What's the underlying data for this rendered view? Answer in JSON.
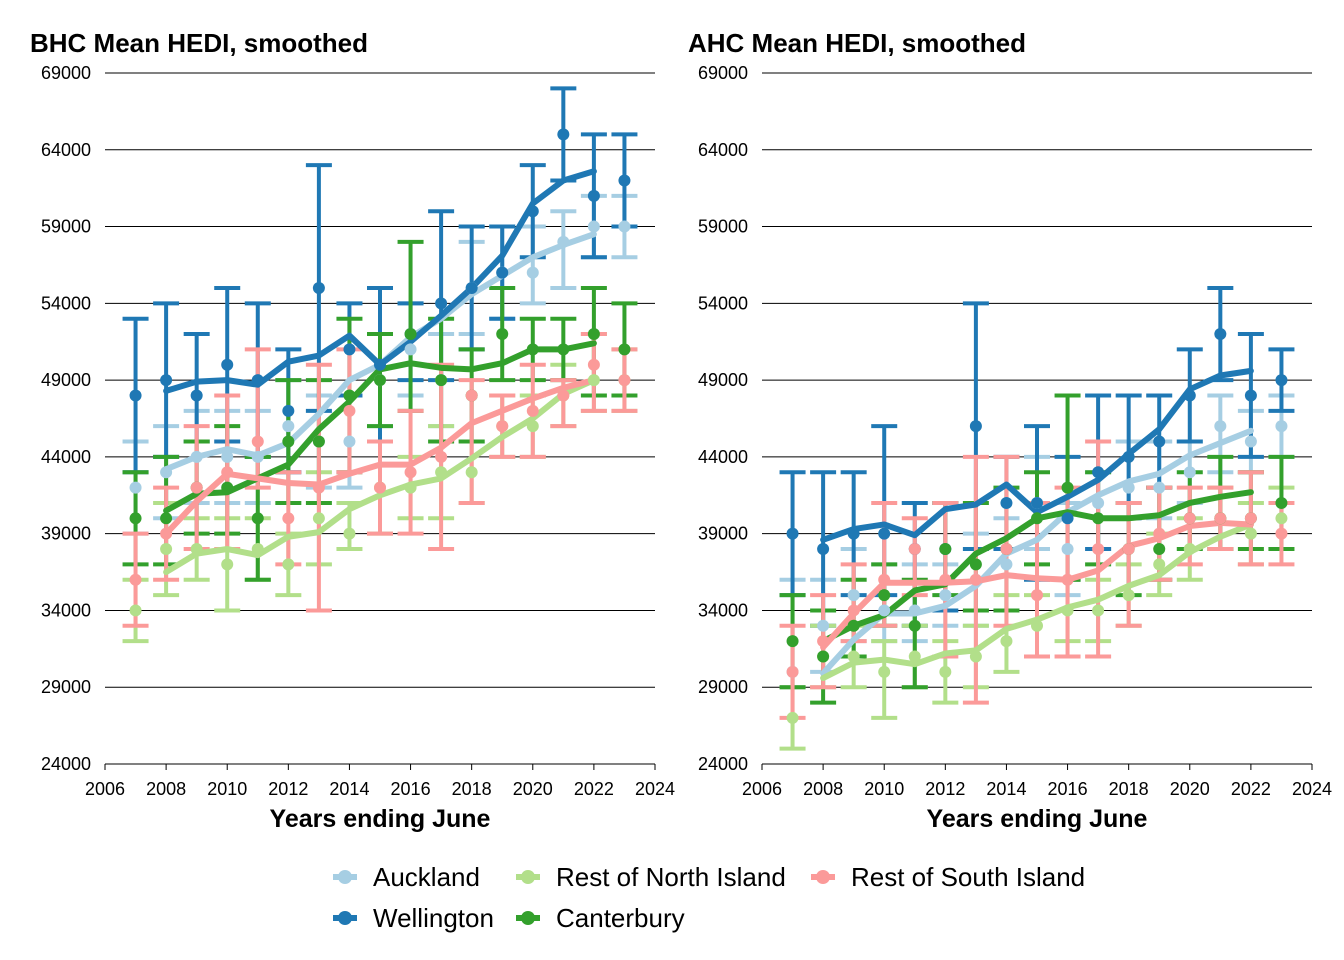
{
  "colors": {
    "Auckland": "#a6cee3",
    "Wellington": "#1f78b4",
    "Rest of North Island": "#b2df8a",
    "Canterbury": "#33a02c",
    "Rest of South Island": "#fb9a99"
  },
  "legend": {
    "items": [
      "Auckland",
      "Rest of North Island",
      "Rest of South Island",
      "Wellington",
      "Canterbury"
    ]
  },
  "chart_data": [
    {
      "type": "line",
      "title": "BHC Mean HEDI, smoothed",
      "xlabel": "Years ending June",
      "ylabel": "",
      "xlim": [
        2006,
        2024
      ],
      "ylim": [
        24000,
        69000
      ],
      "xticks": [
        2006,
        2008,
        2010,
        2012,
        2014,
        2016,
        2018,
        2020,
        2022,
        2024
      ],
      "yticks": [
        24000,
        29000,
        34000,
        39000,
        44000,
        49000,
        54000,
        59000,
        64000,
        69000
      ],
      "grid": "horizontal",
      "series": [
        {
          "name": "Auckland",
          "x": [
            2007,
            2008,
            2009,
            2010,
            2011,
            2012,
            2013,
            2014,
            2015,
            2016,
            2017,
            2018,
            2019,
            2020,
            2021,
            2022,
            2023
          ],
          "point": [
            42000,
            43000,
            44000,
            44000,
            44000,
            46000,
            45000,
            45000,
            49000,
            51000,
            49000,
            55000,
            56000,
            56000,
            58000,
            59000,
            59000
          ],
          "low": [
            39000,
            40000,
            41000,
            41000,
            41000,
            43000,
            42000,
            42000,
            46000,
            48000,
            46000,
            52000,
            53000,
            54000,
            55000,
            57000,
            57000
          ],
          "high": [
            45000,
            46000,
            47000,
            47000,
            47000,
            49000,
            48000,
            48000,
            52000,
            54000,
            52000,
            58000,
            59000,
            59000,
            60000,
            61000,
            61000
          ],
          "smooth": [
            null,
            43200,
            44000,
            44500,
            44100,
            44900,
            46800,
            49000,
            50000,
            51800,
            53000,
            54600,
            55800,
            57000,
            57800,
            58500,
            null
          ]
        },
        {
          "name": "Wellington",
          "x": [
            2007,
            2008,
            2009,
            2010,
            2011,
            2012,
            2013,
            2014,
            2015,
            2016,
            2017,
            2018,
            2019,
            2020,
            2021,
            2022,
            2023
          ],
          "point": [
            48000,
            49000,
            48000,
            50000,
            49000,
            47000,
            55000,
            51000,
            50000,
            52000,
            54000,
            55000,
            56000,
            60000,
            65000,
            61000,
            62000
          ],
          "low": [
            43000,
            44000,
            45000,
            45000,
            44000,
            43000,
            47000,
            48000,
            45000,
            49000,
            49000,
            51000,
            53000,
            57000,
            62000,
            57000,
            59000
          ],
          "high": [
            53000,
            54000,
            52000,
            55000,
            54000,
            51000,
            63000,
            54000,
            55000,
            54000,
            60000,
            59000,
            59000,
            63000,
            68000,
            65000,
            65000
          ],
          "smooth": [
            null,
            48300,
            48900,
            49000,
            48700,
            50200,
            50600,
            51900,
            50000,
            51500,
            53200,
            55000,
            57100,
            60500,
            62000,
            62600,
            null
          ]
        },
        {
          "name": "Rest of North Island",
          "x": [
            2007,
            2008,
            2009,
            2010,
            2011,
            2012,
            2013,
            2014,
            2015,
            2016,
            2017,
            2018,
            2019,
            2020,
            2021,
            2022,
            2023
          ],
          "point": [
            34000,
            38000,
            38000,
            37000,
            38000,
            37000,
            40000,
            39000,
            42000,
            42000,
            43000,
            43000,
            46000,
            46000,
            48000,
            49000,
            49000
          ],
          "low": [
            32000,
            35000,
            36000,
            34000,
            36000,
            35000,
            37000,
            38000,
            39000,
            40000,
            40000,
            41000,
            44000,
            44000,
            46000,
            47000,
            47000
          ],
          "high": [
            36000,
            41000,
            40000,
            40000,
            40000,
            39000,
            43000,
            41000,
            45000,
            44000,
            46000,
            45000,
            48000,
            48000,
            50000,
            52000,
            51000
          ],
          "smooth": [
            null,
            36500,
            37700,
            38000,
            37600,
            38800,
            39100,
            40600,
            41500,
            42200,
            42600,
            43900,
            45300,
            46500,
            48100,
            49000,
            null
          ]
        },
        {
          "name": "Canterbury",
          "x": [
            2007,
            2008,
            2009,
            2010,
            2011,
            2012,
            2013,
            2014,
            2015,
            2016,
            2017,
            2018,
            2019,
            2020,
            2021,
            2022,
            2023
          ],
          "point": [
            40000,
            40000,
            42000,
            42000,
            40000,
            45000,
            45000,
            48000,
            49000,
            52000,
            49000,
            48000,
            52000,
            51000,
            51000,
            52000,
            51000
          ],
          "low": [
            37000,
            37000,
            39000,
            39000,
            36000,
            41000,
            41000,
            43000,
            46000,
            47000,
            45000,
            45000,
            49000,
            49000,
            49000,
            48000,
            48000
          ],
          "high": [
            43000,
            44000,
            45000,
            46000,
            44000,
            49000,
            49000,
            53000,
            52000,
            58000,
            53000,
            51000,
            55000,
            53000,
            53000,
            55000,
            54000
          ],
          "smooth": [
            null,
            40500,
            41600,
            41700,
            42600,
            43500,
            45800,
            47600,
            49700,
            50100,
            49800,
            49700,
            50100,
            51000,
            51000,
            51400,
            null
          ]
        },
        {
          "name": "Rest of South Island",
          "x": [
            2007,
            2008,
            2009,
            2010,
            2011,
            2012,
            2013,
            2014,
            2015,
            2016,
            2017,
            2018,
            2019,
            2020,
            2021,
            2022,
            2023
          ],
          "point": [
            36000,
            39000,
            42000,
            43000,
            45000,
            40000,
            42000,
            47000,
            42000,
            43000,
            44000,
            48000,
            46000,
            47000,
            48000,
            50000,
            49000
          ],
          "low": [
            33000,
            36000,
            38000,
            38000,
            42000,
            37000,
            34000,
            43000,
            39000,
            39000,
            38000,
            41000,
            44000,
            44000,
            46000,
            47000,
            47000
          ],
          "high": [
            39000,
            42000,
            46000,
            48000,
            51000,
            43000,
            50000,
            51000,
            45000,
            47000,
            50000,
            49000,
            48000,
            50000,
            49000,
            52000,
            51000
          ],
          "smooth": [
            null,
            39000,
            41100,
            42900,
            42600,
            42300,
            42200,
            42900,
            43500,
            43500,
            44600,
            46200,
            47000,
            47800,
            48500,
            49000,
            null
          ]
        }
      ]
    },
    {
      "type": "line",
      "title": "AHC Mean HEDI, smoothed",
      "xlabel": "Years ending June",
      "ylabel": "",
      "xlim": [
        2006,
        2024
      ],
      "ylim": [
        24000,
        69000
      ],
      "xticks": [
        2006,
        2008,
        2010,
        2012,
        2014,
        2016,
        2018,
        2020,
        2022,
        2024
      ],
      "yticks": [
        24000,
        29000,
        34000,
        39000,
        44000,
        49000,
        54000,
        59000,
        64000,
        69000
      ],
      "grid": "horizontal",
      "series": [
        {
          "name": "Auckland",
          "x": [
            2007,
            2008,
            2009,
            2010,
            2011,
            2012,
            2013,
            2014,
            2015,
            2016,
            2017,
            2018,
            2019,
            2020,
            2021,
            2022,
            2023
          ],
          "point": [
            30000,
            33000,
            35000,
            34000,
            34000,
            35000,
            36000,
            37000,
            41000,
            38000,
            41000,
            42000,
            42000,
            43000,
            46000,
            45000,
            46000
          ],
          "low": [
            29000,
            30000,
            32000,
            32000,
            32000,
            33000,
            33000,
            34000,
            38000,
            35000,
            38000,
            40000,
            40000,
            41000,
            43000,
            43000,
            44000
          ],
          "high": [
            36000,
            36000,
            38000,
            37000,
            37000,
            37000,
            39000,
            40000,
            44000,
            41000,
            43000,
            45000,
            45000,
            45000,
            48000,
            47000,
            48000
          ],
          "smooth": [
            null,
            29900,
            32100,
            33800,
            33800,
            34300,
            35600,
            37700,
            38600,
            40400,
            41500,
            42400,
            42900,
            44100,
            44900,
            45700,
            null
          ]
        },
        {
          "name": "Wellington",
          "x": [
            2007,
            2008,
            2009,
            2010,
            2011,
            2012,
            2013,
            2014,
            2015,
            2016,
            2017,
            2018,
            2019,
            2020,
            2021,
            2022,
            2023
          ],
          "point": [
            39000,
            38000,
            39000,
            39000,
            38000,
            38000,
            46000,
            41000,
            41000,
            40000,
            43000,
            44000,
            45000,
            48000,
            52000,
            48000,
            49000
          ],
          "low": [
            35000,
            33000,
            35000,
            35000,
            33000,
            34000,
            38000,
            38000,
            36000,
            36000,
            38000,
            40000,
            42000,
            45000,
            49000,
            44000,
            47000
          ],
          "high": [
            43000,
            43000,
            43000,
            46000,
            41000,
            41000,
            54000,
            44000,
            46000,
            44000,
            48000,
            48000,
            48000,
            51000,
            55000,
            52000,
            51000
          ],
          "smooth": [
            null,
            38600,
            39300,
            39600,
            38900,
            40600,
            40900,
            42200,
            40400,
            41400,
            42500,
            44200,
            45800,
            48400,
            49300,
            49600,
            null
          ]
        },
        {
          "name": "Rest of North Island",
          "x": [
            2007,
            2008,
            2009,
            2010,
            2011,
            2012,
            2013,
            2014,
            2015,
            2016,
            2017,
            2018,
            2019,
            2020,
            2021,
            2022,
            2023
          ],
          "point": [
            27000,
            31000,
            31000,
            30000,
            31000,
            30000,
            31000,
            32000,
            33000,
            34000,
            34000,
            35000,
            37000,
            38000,
            40000,
            39000,
            40000
          ],
          "low": [
            25000,
            29000,
            29000,
            27000,
            29000,
            28000,
            29000,
            30000,
            31000,
            32000,
            32000,
            33000,
            35000,
            36000,
            38000,
            37000,
            38000
          ],
          "high": [
            29000,
            33000,
            33000,
            32000,
            33000,
            32000,
            33000,
            35000,
            35000,
            36000,
            36000,
            37000,
            39000,
            40000,
            42000,
            41000,
            42000
          ],
          "smooth": [
            null,
            29600,
            30600,
            30800,
            30500,
            31200,
            31400,
            32800,
            33400,
            34200,
            34700,
            35600,
            36300,
            37800,
            38800,
            39600,
            null
          ]
        },
        {
          "name": "Canterbury",
          "x": [
            2007,
            2008,
            2009,
            2010,
            2011,
            2012,
            2013,
            2014,
            2015,
            2016,
            2017,
            2018,
            2019,
            2020,
            2021,
            2022,
            2023
          ],
          "point": [
            32000,
            31000,
            33000,
            35000,
            33000,
            38000,
            37000,
            38000,
            40000,
            42000,
            40000,
            38000,
            38000,
            40000,
            40000,
            40000,
            41000
          ],
          "low": [
            29000,
            28000,
            31000,
            33000,
            29000,
            35000,
            34000,
            34000,
            37000,
            36000,
            37000,
            35000,
            36000,
            38000,
            38000,
            38000,
            38000
          ],
          "high": [
            35000,
            34000,
            36000,
            37000,
            36000,
            41000,
            41000,
            42000,
            43000,
            48000,
            43000,
            41000,
            42000,
            43000,
            44000,
            43000,
            44000
          ],
          "smooth": [
            null,
            32000,
            33000,
            33700,
            35300,
            35700,
            37700,
            38700,
            40000,
            40400,
            40000,
            40000,
            40200,
            41000,
            41400,
            41700,
            null
          ]
        },
        {
          "name": "Rest of South Island",
          "x": [
            2007,
            2008,
            2009,
            2010,
            2011,
            2012,
            2013,
            2014,
            2015,
            2016,
            2017,
            2018,
            2019,
            2020,
            2021,
            2022,
            2023
          ],
          "point": [
            30000,
            32000,
            34000,
            36000,
            38000,
            36000,
            36000,
            38000,
            35000,
            36000,
            38000,
            38000,
            39000,
            40000,
            40000,
            40000,
            39000
          ],
          "low": [
            27000,
            29000,
            32000,
            33000,
            35000,
            31000,
            28000,
            33000,
            31000,
            31000,
            31000,
            33000,
            36000,
            37000,
            38000,
            37000,
            37000
          ],
          "high": [
            33000,
            35000,
            37000,
            41000,
            40000,
            41000,
            44000,
            44000,
            41000,
            42000,
            45000,
            41000,
            42000,
            42000,
            42000,
            43000,
            41000
          ],
          "smooth": [
            null,
            31600,
            33800,
            35800,
            35800,
            35800,
            35900,
            36300,
            36100,
            36000,
            36600,
            38200,
            38700,
            39500,
            39700,
            39600,
            null
          ]
        }
      ]
    }
  ]
}
